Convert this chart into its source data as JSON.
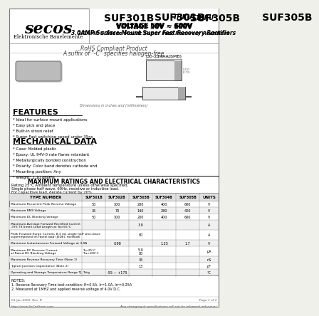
{
  "bg_color": "#f0f0eb",
  "border_color": "#888888",
  "title_main": "SUF301B",
  "title_thru": "THRU",
  "title_end": "SUF305B",
  "subtitle_voltage": "VOLTAGE 50V ~ 600V",
  "subtitle_desc": "3.0AMP Surface Mount Super Fast Recovery Rectifiers",
  "logo_text": "secos",
  "logo_sub": "Elektronische Bauelemente",
  "rohs_text": "RoHS Compliant Product",
  "rohs_sub": "A suffix of \"-C\" specifies halogen-free",
  "package_label": "DO-214AA(SMB)",
  "features_title": "FEATURES",
  "features": [
    "* Ideal for surface mount applications",
    "* Easy pick and place",
    "* Built-in strain relief",
    "* Super Fast switching speed under 35ns"
  ],
  "mech_title": "MECHANICAL DATA",
  "mech_data": [
    "* Case: Molded plastic",
    "* Epoxy: UL 94V-0 rate flame retardant",
    "* Metallurgically bonded construction",
    "* Polarity: Color band denotes cathode end",
    "* Mounting position: Any",
    "* Weight: 1.10 grams"
  ],
  "table_title": "MAXIMUM RATINGS AND ELECTRICAL CHARACTERISTICS",
  "table_subtitle1": "Rating 25°C Ambient temperature unless otherwise specified.",
  "table_subtitle2": "Single phase half wave, 60Hz, resistive or inductive load.",
  "table_subtitle3": "For capacitive load, derate current by 20%.",
  "table_headers": [
    "TYPE NUMBER",
    "SUF301B",
    "SUF302B",
    "SUF303B",
    "SUF304B",
    "SUF305B",
    "UNITS"
  ],
  "notes_title": "NOTES:",
  "note1": "1. Reverse Recovery Time test condition: If=0.5A, Ir=1.0A, Irr=0.25A",
  "note2": "2. Measured at 1MHZ and applied reverse voltage of 4.0V D.C.",
  "footer_left": "http://www.SeCosSemi.com",
  "footer_right": "Any changing of specifications will not be informed individual",
  "footer_date": "01-Jan-2002  Rev. R",
  "footer_page": "Page 1 of 2",
  "dim_note": "Dimensions in inches and (millimeters)"
}
